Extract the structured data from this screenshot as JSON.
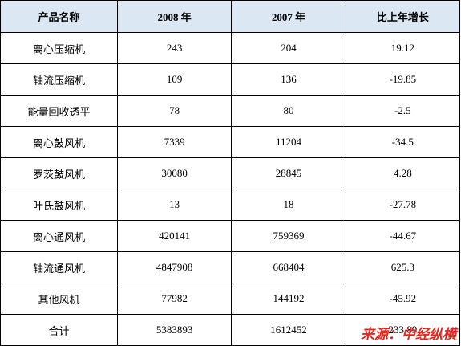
{
  "table": {
    "header": [
      "产品名称",
      "2008 年",
      "2007 年",
      "比上年增长"
    ],
    "rows": [
      [
        "离心压缩机",
        243,
        204,
        19.12
      ],
      [
        "轴流压缩机",
        109,
        136,
        -19.85
      ],
      [
        "能量回收透平",
        78,
        80,
        -2.5
      ],
      [
        "离心鼓风机",
        7339,
        11204,
        -34.5
      ],
      [
        "罗茨鼓风机",
        30080,
        28845,
        4.28
      ],
      [
        "叶氏鼓风机",
        13,
        18,
        -27.78
      ],
      [
        "离心通风机",
        420141,
        759369,
        -44.67
      ],
      [
        "轴流通风机",
        4847908,
        668404,
        625.3
      ],
      [
        "其他风机",
        77982,
        144192,
        -45.92
      ],
      [
        "合计",
        5383893,
        1612452,
        233.89
      ]
    ]
  },
  "source": "来源：中经纵横"
}
